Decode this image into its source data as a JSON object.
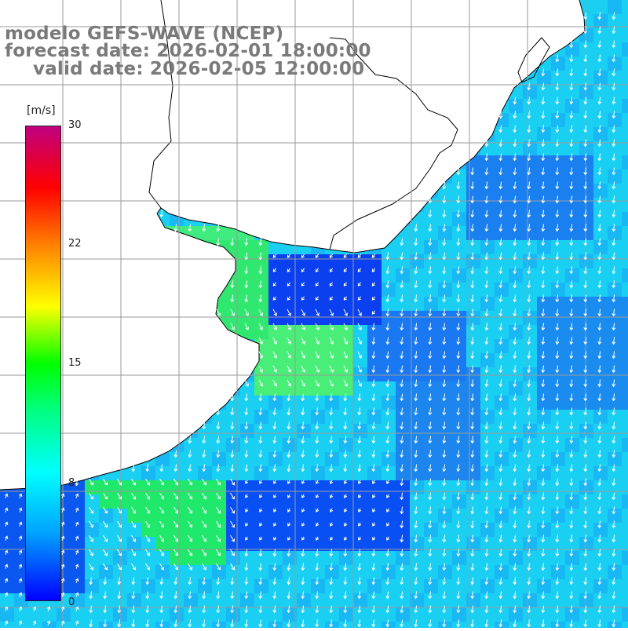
{
  "title": {
    "line1": "modelo GEFS-WAVE (NCEP)",
    "line2": "forecast date: 2026-02-01 18:00:00",
    "line3": "valid date: 2026-02-05 12:00:00"
  },
  "colorbar": {
    "unit": "[m/s]",
    "ticks": [
      "30",
      "22",
      "15",
      "8",
      "0"
    ],
    "tick_values": [
      30,
      22,
      15,
      8,
      0
    ],
    "range": [
      0,
      30
    ],
    "colors": [
      "#0000ff",
      "#00a0ff",
      "#00ffff",
      "#00ff80",
      "#00ff00",
      "#ffff00",
      "#ff8000",
      "#ff0000",
      "#c00080"
    ]
  },
  "map": {
    "variable": "wind speed and direction over ocean",
    "ocean_background": "#1ad8f0",
    "land_color": "#ffffff",
    "graticule_color": "#9a9a9a",
    "arrow_color": "#ffffff",
    "coastline_color": "#000000",
    "grid_on": true
  }
}
